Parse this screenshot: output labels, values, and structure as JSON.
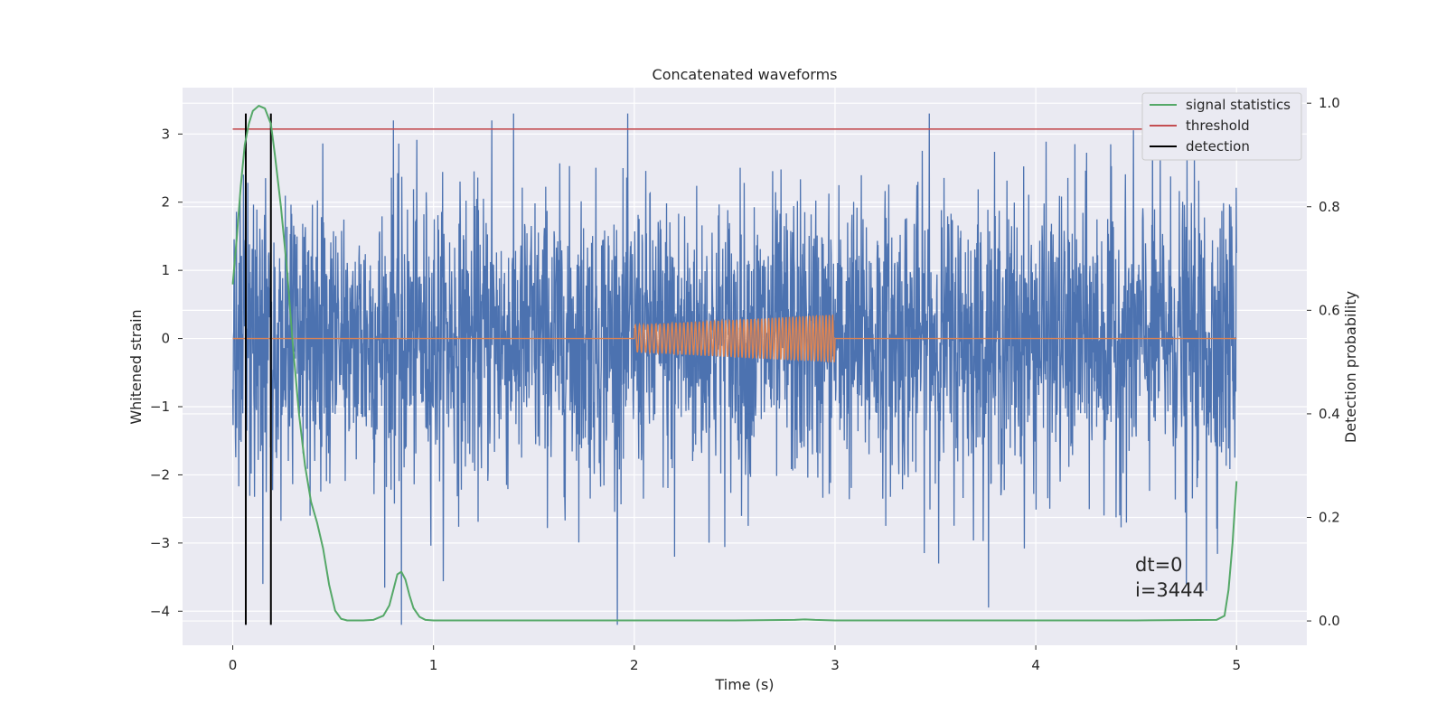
{
  "chart_data": {
    "type": "line",
    "title": "Concatenated waveforms",
    "xlabel": "Time (s)",
    "ylabel": "Whitened strain",
    "y2label": "Detection probability",
    "xlim": [
      -0.25,
      5.35
    ],
    "ylim": [
      -4.5,
      3.68
    ],
    "y2lim": [
      -0.047,
      1.03
    ],
    "xticks": [
      0,
      1,
      2,
      3,
      4,
      5
    ],
    "yticks": [
      -4,
      -3,
      -2,
      -1,
      0,
      1,
      2,
      3
    ],
    "y2ticks": [
      0.0,
      0.2,
      0.4,
      0.6,
      0.8,
      1.0
    ],
    "ytick_labels": [
      "−4",
      "−3",
      "−2",
      "−1",
      "0",
      "1",
      "2",
      "3"
    ],
    "y2tick_labels": [
      "0.0",
      "0.2",
      "0.4",
      "0.6",
      "0.8",
      "1.0"
    ],
    "grid": true,
    "legend_position": "top-right",
    "legend": [
      {
        "label": "signal statistics",
        "color": "#55a868"
      },
      {
        "label": "threshold",
        "color": "#c44e52"
      },
      {
        "label": "detection",
        "color": "#000000"
      }
    ],
    "annotation": {
      "lines": [
        "dt=0",
        "i=3444"
      ],
      "x": 4.5,
      "y": -3.65
    },
    "series": [
      {
        "role": "noise",
        "color": "#4c72b0",
        "x_range": [
          0,
          5
        ],
        "spread_std": 1.05,
        "visible_envelope": [
          -4.2,
          3.3
        ],
        "notable_spikes": [
          {
            "x": 0.15,
            "y": -3.6
          },
          {
            "x": 0.8,
            "y": 3.2
          },
          {
            "x": 0.84,
            "y": -4.2
          },
          {
            "x": 1.29,
            "y": 3.2
          },
          {
            "x": 2.2,
            "y": -3.2
          },
          {
            "x": 3.47,
            "y": 3.3
          },
          {
            "x": 4.75,
            "y": -3.6
          },
          {
            "x": 4.85,
            "y": -3.7
          }
        ]
      },
      {
        "role": "injected waveform",
        "color": "#dd8452",
        "x_range": [
          0,
          5
        ],
        "chirp_start": 2.0,
        "chirp_end": 3.0,
        "amplitude_start": 0.2,
        "amplitude_end": 0.35,
        "oscillations": 55
      },
      {
        "name": "signal statistics",
        "color": "#55a868",
        "axis": "right",
        "x": [
          0.0,
          0.02,
          0.04,
          0.06,
          0.08,
          0.1,
          0.13,
          0.16,
          0.19,
          0.21,
          0.24,
          0.27,
          0.3,
          0.33,
          0.36,
          0.39,
          0.42,
          0.45,
          0.48,
          0.51,
          0.54,
          0.57,
          0.6,
          0.65,
          0.7,
          0.75,
          0.78,
          0.8,
          0.82,
          0.84,
          0.86,
          0.88,
          0.9,
          0.93,
          0.96,
          1.0,
          1.1,
          1.5,
          2.0,
          2.5,
          2.8,
          2.85,
          2.9,
          3.0,
          3.5,
          4.0,
          4.5,
          4.9,
          4.94,
          4.96,
          4.98,
          5.0
        ],
        "y": [
          0.65,
          0.74,
          0.84,
          0.92,
          0.96,
          0.985,
          0.995,
          0.99,
          0.96,
          0.9,
          0.8,
          0.68,
          0.53,
          0.4,
          0.3,
          0.23,
          0.19,
          0.14,
          0.07,
          0.02,
          0.004,
          0.001,
          0.001,
          0.001,
          0.002,
          0.01,
          0.03,
          0.06,
          0.09,
          0.095,
          0.08,
          0.05,
          0.025,
          0.008,
          0.002,
          0.001,
          0.001,
          0.001,
          0.001,
          0.001,
          0.002,
          0.003,
          0.002,
          0.001,
          0.001,
          0.001,
          0.001,
          0.002,
          0.01,
          0.06,
          0.15,
          0.27
        ]
      },
      {
        "name": "threshold",
        "color": "#c44e52",
        "axis": "right",
        "x": [
          0,
          5
        ],
        "y": [
          0.95,
          0.95
        ]
      },
      {
        "name": "detection",
        "color": "#000000",
        "type": "vlines",
        "x": [
          0.065,
          0.19
        ],
        "y_range": [
          -4.2,
          3.3
        ]
      }
    ]
  }
}
